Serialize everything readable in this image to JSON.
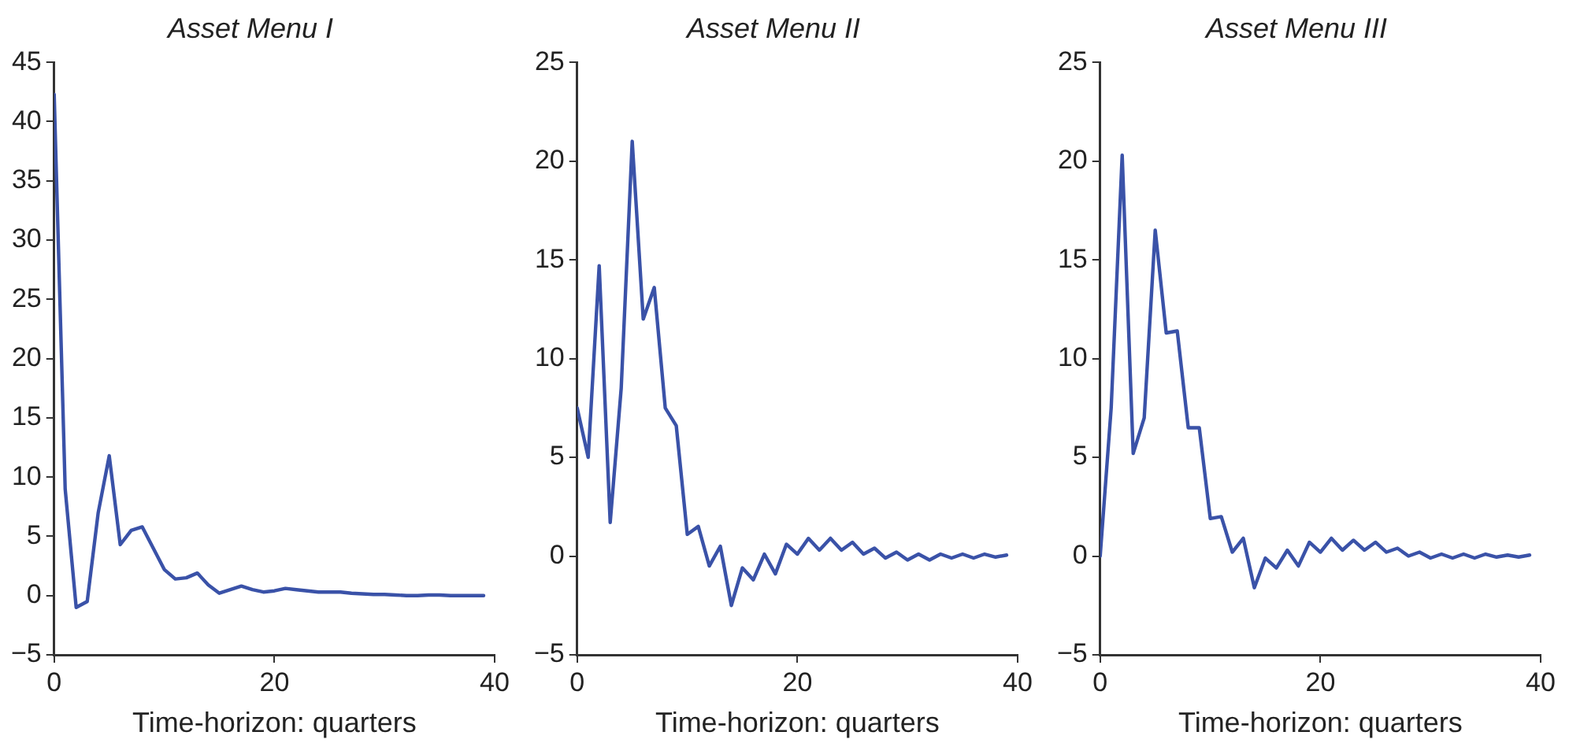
{
  "chart_data": [
    {
      "type": "line",
      "title": "Asset Menu I",
      "xlabel": "Time-horizon: quarters",
      "x": [
        0,
        1,
        2,
        3,
        4,
        5,
        6,
        7,
        8,
        9,
        10,
        11,
        12,
        13,
        14,
        15,
        16,
        17,
        18,
        19,
        20,
        21,
        22,
        23,
        24,
        25,
        26,
        27,
        28,
        29,
        30,
        31,
        32,
        33,
        34,
        35,
        36,
        37,
        38,
        39
      ],
      "series": [
        {
          "color": "#3a52a8",
          "values": [
            42.3,
            9,
            -1,
            -0.5,
            7,
            11.8,
            4.3,
            5.5,
            5.8,
            4,
            2.2,
            1.4,
            1.5,
            1.9,
            0.9,
            0.2,
            0.5,
            0.8,
            0.5,
            0.3,
            0.4,
            0.6,
            0.5,
            0.4,
            0.3,
            0.3,
            0.3,
            0.2,
            0.15,
            0.1,
            0.1,
            0.05,
            0,
            0,
            0.05,
            0.05,
            0,
            0,
            0,
            0
          ]
        }
      ],
      "xlim": [
        0,
        40
      ],
      "xticks": [
        0,
        20,
        40
      ],
      "ylim": [
        -5,
        45
      ],
      "yticks": [
        -5,
        0,
        5,
        10,
        15,
        20,
        25,
        30,
        35,
        40,
        45
      ],
      "grid": false,
      "legend": false,
      "marker": "none",
      "line_style": "solid"
    },
    {
      "type": "line",
      "title": "Asset Menu II",
      "xlabel": "Time-horizon: quarters",
      "x": [
        0,
        1,
        2,
        3,
        4,
        5,
        6,
        7,
        8,
        9,
        10,
        11,
        12,
        13,
        14,
        15,
        16,
        17,
        18,
        19,
        20,
        21,
        22,
        23,
        24,
        25,
        26,
        27,
        28,
        29,
        30,
        31,
        32,
        33,
        34,
        35,
        36,
        37,
        38,
        39
      ],
      "series": [
        {
          "color": "#3a52a8",
          "values": [
            7.5,
            5,
            14.7,
            1.7,
            8.5,
            21,
            12,
            13.6,
            7.5,
            6.6,
            1.1,
            1.5,
            -0.5,
            0.5,
            -2.5,
            -0.6,
            -1.2,
            0.1,
            -0.9,
            0.6,
            0.1,
            0.9,
            0.3,
            0.9,
            0.3,
            0.7,
            0.1,
            0.4,
            -0.1,
            0.2,
            -0.2,
            0.1,
            -0.2,
            0.1,
            -0.1,
            0.1,
            -0.1,
            0.1,
            -0.05,
            0.05
          ]
        }
      ],
      "xlim": [
        0,
        40
      ],
      "xticks": [
        0,
        20,
        40
      ],
      "ylim": [
        -5,
        25
      ],
      "yticks": [
        -5,
        0,
        5,
        10,
        15,
        20,
        25
      ],
      "grid": false,
      "legend": false,
      "marker": "none",
      "line_style": "solid"
    },
    {
      "type": "line",
      "title": "Asset Menu III",
      "xlabel": "Time-horizon: quarters",
      "x": [
        0,
        1,
        2,
        3,
        4,
        5,
        6,
        7,
        8,
        9,
        10,
        11,
        12,
        13,
        14,
        15,
        16,
        17,
        18,
        19,
        20,
        21,
        22,
        23,
        24,
        25,
        26,
        27,
        28,
        29,
        30,
        31,
        32,
        33,
        34,
        35,
        36,
        37,
        38,
        39
      ],
      "series": [
        {
          "color": "#3a52a8",
          "values": [
            0,
            7.5,
            20.3,
            5.2,
            7,
            16.5,
            11.3,
            11.4,
            6.5,
            6.5,
            1.9,
            2,
            0.2,
            0.9,
            -1.6,
            -0.1,
            -0.6,
            0.3,
            -0.5,
            0.7,
            0.2,
            0.9,
            0.3,
            0.8,
            0.3,
            0.7,
            0.2,
            0.4,
            0,
            0.2,
            -0.1,
            0.1,
            -0.1,
            0.1,
            -0.1,
            0.1,
            -0.05,
            0.05,
            -0.05,
            0.05
          ]
        }
      ],
      "xlim": [
        0,
        40
      ],
      "xticks": [
        0,
        20,
        40
      ],
      "ylim": [
        -5,
        25
      ],
      "yticks": [
        -5,
        0,
        5,
        10,
        15,
        20,
        25
      ],
      "grid": false,
      "legend": false,
      "marker": "none",
      "line_style": "solid"
    }
  ]
}
